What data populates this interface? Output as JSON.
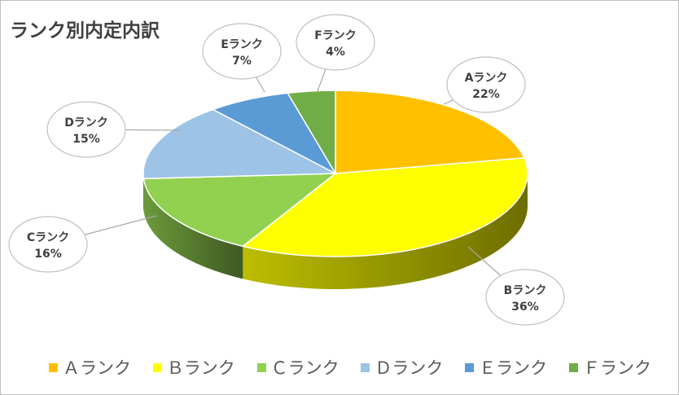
{
  "chart_data": {
    "type": "pie",
    "title": "ランク別内定内訳",
    "three_d": true,
    "legend_position": "bottom",
    "categories": [
      "Aランク",
      "Bランク",
      "Cランク",
      "Dランク",
      "Eランク",
      "Fランク"
    ],
    "legend_labels": [
      "Ａランク",
      "Ｂランク",
      "Ｃランク",
      "Ｄランク",
      "Ｅランク",
      "Ｆランク"
    ],
    "values": [
      22,
      36,
      16,
      15,
      7,
      4
    ],
    "value_labels": [
      "22%",
      "36%",
      "16%",
      "15%",
      "7%",
      "4%"
    ],
    "colors": [
      "#FFC000",
      "#FFFF00",
      "#92D050",
      "#9DC3E6",
      "#5B9BD5",
      "#70AD47"
    ]
  }
}
